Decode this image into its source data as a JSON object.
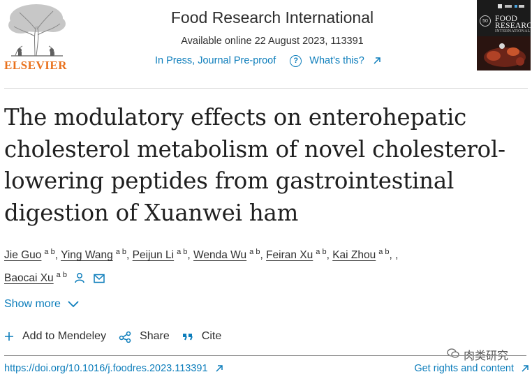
{
  "publisher": {
    "name": "ELSEVIER"
  },
  "journal": {
    "title": "Food Research International",
    "availability": "Available online 22 August 2023, 113391",
    "status_label": "In Press, Journal Pre-proof",
    "whats_this_label": "What's this?"
  },
  "cover": {
    "title_line1": "FOOD",
    "title_line2": "RESEARCH",
    "subtitle": "INTERNATIONAL",
    "badge": "50"
  },
  "article": {
    "title": "The modulatory effects on enterohepatic cholesterol metabolism of novel cholesterol-lowering peptides from gastrointestinal digestion of Xuanwei ham"
  },
  "authors": [
    {
      "name": "Jie Guo",
      "aff": "a b",
      "sep": ", "
    },
    {
      "name": "Ying Wang",
      "aff": "a b",
      "sep": ", "
    },
    {
      "name": "Peijun Li",
      "aff": "a b",
      "sep": ", "
    },
    {
      "name": "Wenda Wu",
      "aff": "a b",
      "sep": ", "
    },
    {
      "name": "Feiran Xu",
      "aff": "a b",
      "sep": ", "
    },
    {
      "name": "Kai Zhou",
      "aff": "a b",
      "sep": ", "
    },
    {
      "name": "Baocai Xu",
      "aff": "a b",
      "sep": ""
    }
  ],
  "show_more_label": "Show more",
  "actions": {
    "mendeley_label": "Add to Mendeley",
    "share_label": "Share",
    "cite_label": "Cite"
  },
  "watermark": "肉类研究",
  "links": {
    "doi": "https://doi.org/10.1016/j.foodres.2023.113391",
    "rights": "Get rights and content"
  },
  "colors": {
    "link": "#0c7dbb",
    "elsevier_orange": "#e9711c",
    "text": "#2e2e2e"
  }
}
